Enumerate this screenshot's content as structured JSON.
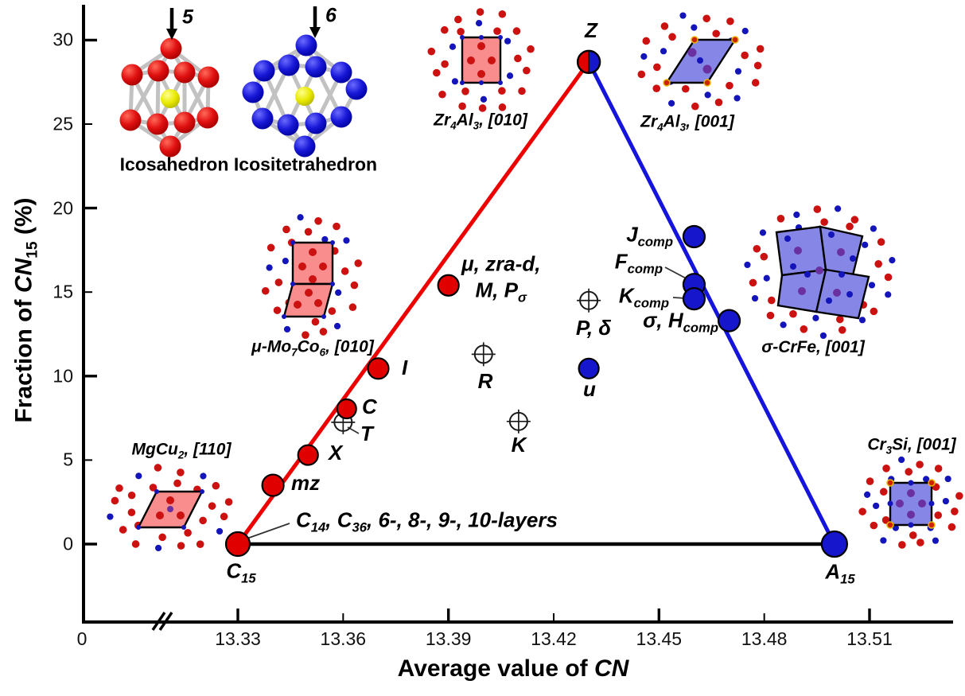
{
  "clusters": {
    "icosahedron": {
      "label": "Icosahedron",
      "arrow_number": "5"
    },
    "icositetrahedron": {
      "label": "Icositetrahedron",
      "arrow_number": "6"
    }
  },
  "insets": [
    {
      "id": "zr4al3-010",
      "label": "Zr_{4}Al_{3}, [010]"
    },
    {
      "id": "zr4al3-001",
      "label": "Zr_{4}Al_{3}, [001]"
    },
    {
      "id": "mu-mo7co6-010",
      "label": "μ-Mo_{7}Co_{6}, [010]"
    },
    {
      "id": "mgcu2-110",
      "label": "MgCu_{2}, [110]"
    },
    {
      "id": "sigma-crfe-001",
      "label": "σ-CrFe, [001]"
    },
    {
      "id": "cr3si-001",
      "label": "Cr_{3}Si, [001]"
    }
  ],
  "chart_data": {
    "type": "scatter",
    "title": "",
    "xlabel": "Average value of *CN*",
    "ylabel": "Fraction of *CN*_{15} (%)",
    "x_origin_label": "0",
    "x_axis_break": true,
    "xlim": [
      13.32,
      13.535
    ],
    "ylim": [
      0,
      31
    ],
    "x_ticks": [
      {
        "v": 13.33,
        "label": "13.33",
        "major": true
      },
      {
        "v": 13.36,
        "label": "13.36",
        "major": false
      },
      {
        "v": 13.39,
        "label": "13.39",
        "major": true
      },
      {
        "v": 13.42,
        "label": "13.42",
        "major": false
      },
      {
        "v": 13.45,
        "label": "13.45",
        "major": true
      },
      {
        "v": 13.48,
        "label": "13.48",
        "major": false
      },
      {
        "v": 13.51,
        "label": "13.51",
        "major": true
      }
    ],
    "y_ticks": [
      {
        "v": 0,
        "label": "0",
        "major": true
      },
      {
        "v": 5,
        "label": "5",
        "major": false
      },
      {
        "v": 10,
        "label": "10",
        "major": true
      },
      {
        "v": 15,
        "label": "15",
        "major": false
      },
      {
        "v": 20,
        "label": "20",
        "major": true
      },
      {
        "v": 25,
        "label": "25",
        "major": false
      },
      {
        "v": 30,
        "label": "30",
        "major": true
      }
    ],
    "colors": {
      "red": "#E00000",
      "blue": "#1616CC"
    },
    "lines": [
      {
        "id": "laves-branch",
        "color": "#EE0000",
        "width": 5,
        "from": [
          13.33,
          0
        ],
        "to": [
          13.43,
          28.7
        ]
      },
      {
        "id": "a15-branch",
        "color": "#1414DD",
        "width": 5,
        "from": [
          13.43,
          28.7
        ],
        "to": [
          13.5,
          0
        ]
      },
      {
        "id": "baseline",
        "color": "#000000",
        "width": 4.5,
        "from": [
          13.33,
          0
        ],
        "to": [
          13.5,
          0
        ]
      }
    ],
    "points": [
      {
        "id": "C15",
        "x": 13.33,
        "y": 0.0,
        "marker": "filled",
        "color": "red",
        "r": 15,
        "label": "C_{15}"
      },
      {
        "id": "mz",
        "x": 13.34,
        "y": 3.5,
        "marker": "filled",
        "color": "red",
        "r": 13.5,
        "label": "mz"
      },
      {
        "id": "X",
        "x": 13.35,
        "y": 5.3,
        "marker": "filled",
        "color": "red",
        "r": 12.5,
        "label": "X"
      },
      {
        "id": "T",
        "x": 13.36,
        "y": 7.25,
        "marker": "open",
        "r": 11,
        "label": "T"
      },
      {
        "id": "C",
        "x": 13.361,
        "y": 8.05,
        "marker": "filled",
        "color": "red",
        "r": 12,
        "label": "C"
      },
      {
        "id": "I",
        "x": 13.37,
        "y": 10.45,
        "marker": "filled",
        "color": "red",
        "r": 13,
        "label": "I"
      },
      {
        "id": "mu-group",
        "x": 13.39,
        "y": 15.4,
        "marker": "filled",
        "color": "red",
        "r": 13,
        "label": "μ, zra-d,\nM, P_{σ}"
      },
      {
        "id": "R",
        "x": 13.4,
        "y": 11.3,
        "marker": "open",
        "r": 11,
        "label": "R"
      },
      {
        "id": "K",
        "x": 13.41,
        "y": 7.3,
        "marker": "open",
        "r": 11,
        "label": "K"
      },
      {
        "id": "P-delta",
        "x": 13.43,
        "y": 14.5,
        "marker": "open",
        "r": 11,
        "label": "P, δ"
      },
      {
        "id": "u",
        "x": 13.43,
        "y": 10.45,
        "marker": "filled",
        "color": "blue",
        "r": 12.5,
        "label": "u"
      },
      {
        "id": "Z",
        "x": 13.43,
        "y": 28.7,
        "marker": "half",
        "r": 14,
        "label": "Z"
      },
      {
        "id": "J-comp",
        "x": 13.46,
        "y": 18.3,
        "marker": "filled",
        "color": "blue",
        "r": 13.5,
        "label": "J_{comp}"
      },
      {
        "id": "F-comp",
        "x": 13.46,
        "y": 15.45,
        "marker": "filled",
        "color": "blue",
        "r": 13.5,
        "label": "F_{comp}"
      },
      {
        "id": "K-comp",
        "x": 13.46,
        "y": 14.6,
        "marker": "filled",
        "color": "blue",
        "r": 13.5,
        "label": "K_{comp}"
      },
      {
        "id": "sigma-H-comp",
        "x": 13.47,
        "y": 13.3,
        "marker": "filled",
        "color": "blue",
        "r": 13.5,
        "label": "σ, H_{comp}"
      },
      {
        "id": "A15",
        "x": 13.5,
        "y": 0.0,
        "marker": "filled",
        "color": "blue",
        "r": 16,
        "label": "A_{15}"
      }
    ],
    "annotation": {
      "text": "C_{14}, C_{36}, 6-, 8-, 9-, 10-layers",
      "attached_to": "C15"
    }
  }
}
